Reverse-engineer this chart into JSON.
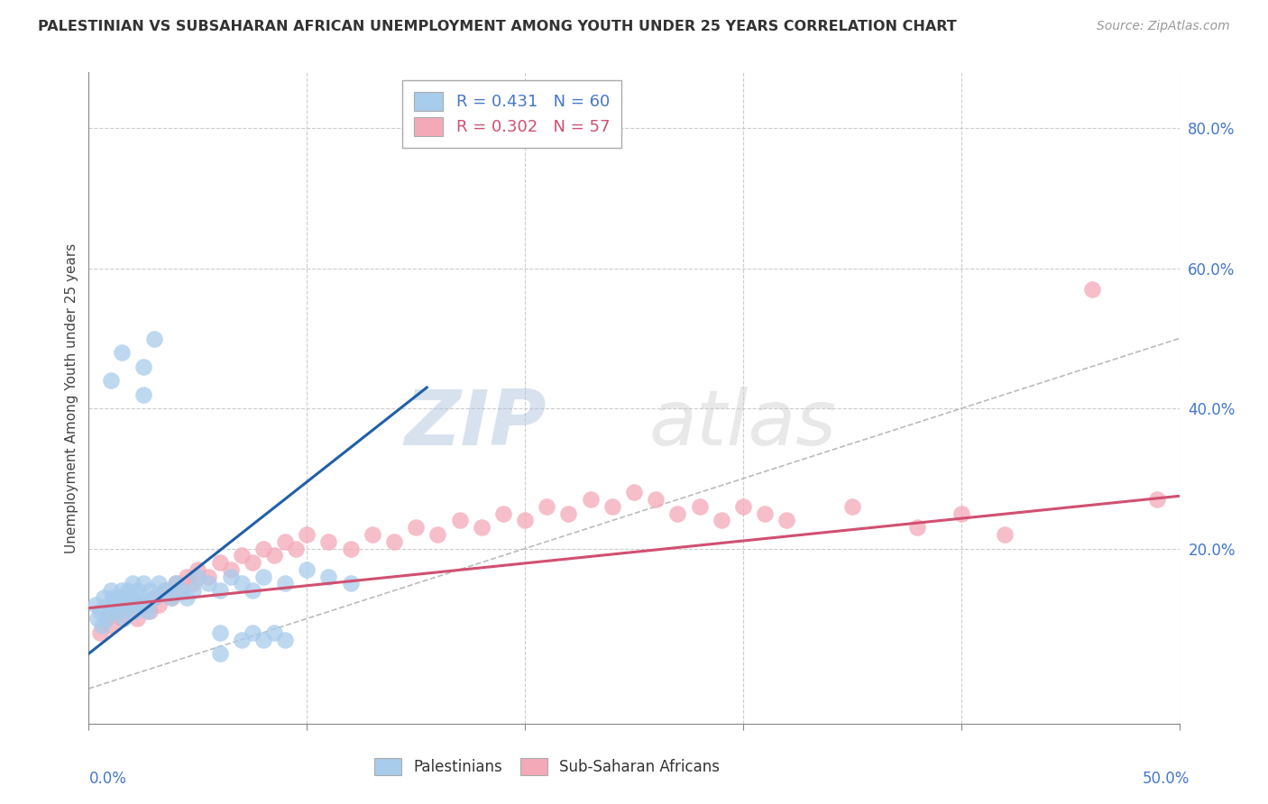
{
  "title": "PALESTINIAN VS SUBSAHARAN AFRICAN UNEMPLOYMENT AMONG YOUTH UNDER 25 YEARS CORRELATION CHART",
  "source": "Source: ZipAtlas.com",
  "ylabel": "Unemployment Among Youth under 25 years",
  "ytick_values": [
    0.0,
    0.2,
    0.4,
    0.6,
    0.8
  ],
  "ytick_labels": [
    "",
    "20.0%",
    "40.0%",
    "60.0%",
    "80.0%"
  ],
  "xmin": 0.0,
  "xmax": 0.5,
  "ymin": -0.05,
  "ymax": 0.88,
  "legend1_label": "R = 0.431   N = 60",
  "legend2_label": "R = 0.302   N = 57",
  "legend1_color": "#A8CCEC",
  "legend2_color": "#F4A9B8",
  "blue_line_color": "#2060A8",
  "pink_line_color": "#D05070",
  "diag_line_color": "#BBBBBB",
  "watermark_zip": "ZIP",
  "watermark_atlas": "atlas",
  "blue_dots": [
    [
      0.003,
      0.12
    ],
    [
      0.004,
      0.1
    ],
    [
      0.005,
      0.11
    ],
    [
      0.006,
      0.09
    ],
    [
      0.007,
      0.13
    ],
    [
      0.008,
      0.1
    ],
    [
      0.009,
      0.12
    ],
    [
      0.01,
      0.11
    ],
    [
      0.01,
      0.14
    ],
    [
      0.011,
      0.13
    ],
    [
      0.012,
      0.12
    ],
    [
      0.013,
      0.11
    ],
    [
      0.014,
      0.13
    ],
    [
      0.015,
      0.14
    ],
    [
      0.015,
      0.12
    ],
    [
      0.016,
      0.1
    ],
    [
      0.017,
      0.13
    ],
    [
      0.018,
      0.14
    ],
    [
      0.019,
      0.12
    ],
    [
      0.02,
      0.13
    ],
    [
      0.02,
      0.15
    ],
    [
      0.021,
      0.11
    ],
    [
      0.022,
      0.14
    ],
    [
      0.023,
      0.12
    ],
    [
      0.024,
      0.13
    ],
    [
      0.025,
      0.15
    ],
    [
      0.026,
      0.12
    ],
    [
      0.027,
      0.11
    ],
    [
      0.028,
      0.14
    ],
    [
      0.03,
      0.13
    ],
    [
      0.032,
      0.15
    ],
    [
      0.035,
      0.14
    ],
    [
      0.038,
      0.13
    ],
    [
      0.04,
      0.15
    ],
    [
      0.042,
      0.14
    ],
    [
      0.045,
      0.13
    ],
    [
      0.048,
      0.14
    ],
    [
      0.05,
      0.16
    ],
    [
      0.055,
      0.15
    ],
    [
      0.06,
      0.14
    ],
    [
      0.065,
      0.16
    ],
    [
      0.07,
      0.15
    ],
    [
      0.075,
      0.14
    ],
    [
      0.08,
      0.16
    ],
    [
      0.09,
      0.15
    ],
    [
      0.1,
      0.17
    ],
    [
      0.11,
      0.16
    ],
    [
      0.12,
      0.15
    ],
    [
      0.06,
      0.08
    ],
    [
      0.07,
      0.07
    ],
    [
      0.075,
      0.08
    ],
    [
      0.08,
      0.07
    ],
    [
      0.085,
      0.08
    ],
    [
      0.09,
      0.07
    ],
    [
      0.06,
      0.05
    ],
    [
      0.025,
      0.46
    ],
    [
      0.03,
      0.5
    ],
    [
      0.01,
      0.44
    ],
    [
      0.015,
      0.48
    ],
    [
      0.025,
      0.42
    ]
  ],
  "pink_dots": [
    [
      0.005,
      0.08
    ],
    [
      0.008,
      0.1
    ],
    [
      0.01,
      0.09
    ],
    [
      0.012,
      0.11
    ],
    [
      0.015,
      0.1
    ],
    [
      0.018,
      0.12
    ],
    [
      0.02,
      0.11
    ],
    [
      0.022,
      0.1
    ],
    [
      0.025,
      0.12
    ],
    [
      0.028,
      0.11
    ],
    [
      0.03,
      0.13
    ],
    [
      0.032,
      0.12
    ],
    [
      0.035,
      0.14
    ],
    [
      0.038,
      0.13
    ],
    [
      0.04,
      0.15
    ],
    [
      0.042,
      0.14
    ],
    [
      0.045,
      0.16
    ],
    [
      0.048,
      0.15
    ],
    [
      0.05,
      0.17
    ],
    [
      0.055,
      0.16
    ],
    [
      0.06,
      0.18
    ],
    [
      0.065,
      0.17
    ],
    [
      0.07,
      0.19
    ],
    [
      0.075,
      0.18
    ],
    [
      0.08,
      0.2
    ],
    [
      0.085,
      0.19
    ],
    [
      0.09,
      0.21
    ],
    [
      0.095,
      0.2
    ],
    [
      0.1,
      0.22
    ],
    [
      0.11,
      0.21
    ],
    [
      0.12,
      0.2
    ],
    [
      0.13,
      0.22
    ],
    [
      0.14,
      0.21
    ],
    [
      0.15,
      0.23
    ],
    [
      0.16,
      0.22
    ],
    [
      0.17,
      0.24
    ],
    [
      0.18,
      0.23
    ],
    [
      0.19,
      0.25
    ],
    [
      0.2,
      0.24
    ],
    [
      0.21,
      0.26
    ],
    [
      0.22,
      0.25
    ],
    [
      0.23,
      0.27
    ],
    [
      0.24,
      0.26
    ],
    [
      0.25,
      0.28
    ],
    [
      0.26,
      0.27
    ],
    [
      0.27,
      0.25
    ],
    [
      0.28,
      0.26
    ],
    [
      0.29,
      0.24
    ],
    [
      0.3,
      0.26
    ],
    [
      0.31,
      0.25
    ],
    [
      0.32,
      0.24
    ],
    [
      0.35,
      0.26
    ],
    [
      0.38,
      0.23
    ],
    [
      0.4,
      0.25
    ],
    [
      0.42,
      0.22
    ],
    [
      0.46,
      0.57
    ],
    [
      0.49,
      0.27
    ]
  ],
  "blue_line_x": [
    0.0,
    0.155
  ],
  "blue_line_y": [
    0.05,
    0.43
  ],
  "pink_line_x": [
    0.0,
    0.5
  ],
  "pink_line_y": [
    0.115,
    0.275
  ]
}
